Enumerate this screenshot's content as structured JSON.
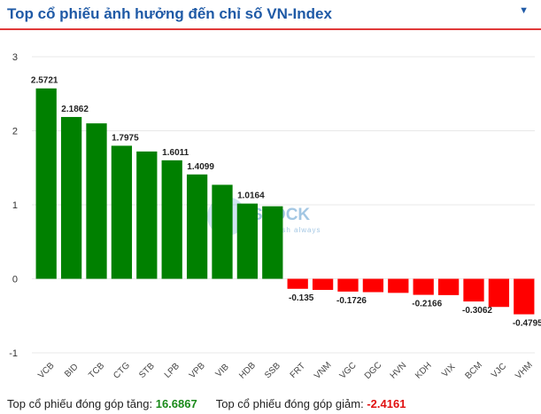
{
  "header": {
    "title": "Top cổ phiếu ảnh hưởng đến chỉ số VN-Index",
    "caret_icon": "triangle-down-icon"
  },
  "watermark": {
    "brand": "STOCK",
    "tagline": "fresh always"
  },
  "colors": {
    "positive": "#008000",
    "negative": "#ff0000",
    "accent": "#e03a3a",
    "title": "#1f5aa6"
  },
  "chart_data": {
    "type": "bar",
    "categories": [
      "VCB",
      "BID",
      "TCB",
      "CTG",
      "STB",
      "LPB",
      "VPB",
      "VIB",
      "HDB",
      "SSB",
      "FRT",
      "VNM",
      "VGC",
      "DGC",
      "HVN",
      "KDH",
      "VIX",
      "BCM",
      "VJC",
      "VHM"
    ],
    "values": [
      2.5721,
      2.1862,
      2.1,
      1.7975,
      1.72,
      1.6011,
      1.4099,
      1.27,
      1.0164,
      0.98,
      -0.135,
      -0.15,
      -0.1726,
      -0.18,
      -0.19,
      -0.2166,
      -0.22,
      -0.3062,
      -0.38,
      -0.4795
    ],
    "labels": [
      "2.5721",
      "2.1862",
      "",
      "1.7975",
      "",
      "1.6011",
      "1.4099",
      "",
      "1.0164",
      "",
      "-0.135",
      "",
      "-0.1726",
      "",
      "",
      "-0.2166",
      "",
      "-0.3062",
      "",
      "-0.4795"
    ],
    "ylim": [
      -1,
      3
    ],
    "yticks": [
      -1,
      0,
      1,
      2,
      3
    ],
    "grid": true
  },
  "footer": {
    "up_label": "Top cổ phiếu đóng góp tăng:",
    "up_value": "16.6867",
    "down_label": "Top cổ phiếu đóng góp giảm:",
    "down_value": "-2.4161"
  }
}
